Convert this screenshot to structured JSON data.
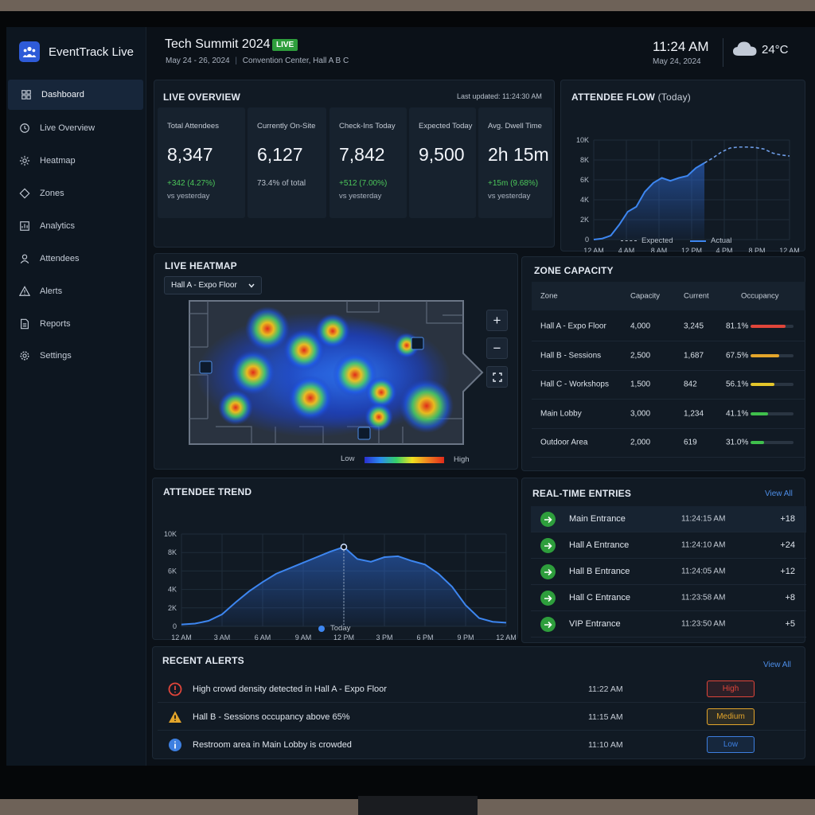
{
  "app": {
    "name": "EventTrack Live"
  },
  "sidebar": {
    "items": [
      {
        "label": "Dashboard",
        "icon": "dashboard-icon",
        "active": true
      },
      {
        "label": "Live Overview",
        "icon": "clock-icon"
      },
      {
        "label": "Heatmap",
        "icon": "heatmap-icon"
      },
      {
        "label": "Zones",
        "icon": "zones-icon"
      },
      {
        "label": "Analytics",
        "icon": "analytics-icon"
      },
      {
        "label": "Attendees",
        "icon": "user-icon"
      },
      {
        "label": "Alerts",
        "icon": "warning-icon"
      },
      {
        "label": "Reports",
        "icon": "report-icon"
      },
      {
        "label": "Settings",
        "icon": "gear-icon"
      }
    ]
  },
  "header": {
    "title": "Tech Summit 2024",
    "badge": "LIVE",
    "dates": "May 24 - 26, 2024",
    "venue": "Convention Center, Hall A B C",
    "time": "11:24 AM",
    "date": "May 24, 2024",
    "temperature": "24°C",
    "weather_icon": "cloud-icon"
  },
  "overview": {
    "title": "LIVE OVERVIEW",
    "updated": "Last updated: 11:24:30 AM",
    "kpis": [
      {
        "label": "Total Attendees",
        "value": "8,347",
        "change": "+342 (4.27%)",
        "ref": "vs yesterday"
      },
      {
        "label": "Currently On-Site",
        "value": "6,127",
        "change": "73.4% of total",
        "ref": ""
      },
      {
        "label": "Check-Ins Today",
        "value": "7,842",
        "change": "+512 (7.00%)",
        "ref": "vs yesterday"
      },
      {
        "label": "Expected Today",
        "value": "9,500",
        "change": "",
        "ref": ""
      },
      {
        "label": "Avg. Dwell Time",
        "value": "2h 15m",
        "change": "+15m (9.68%)",
        "ref": "vs yesterday"
      }
    ]
  },
  "flow": {
    "title": "ATTENDEE FLOW",
    "title_suffix": "(Today)",
    "legend_expected": "Expected",
    "legend_actual": "Actual"
  },
  "heatmap": {
    "title": "LIVE HEATMAP",
    "selected_area": "Hall A - Expo Floor",
    "legend_low": "Low",
    "legend_high": "High"
  },
  "zones": {
    "title": "ZONE CAPACITY",
    "headers": [
      "Zone",
      "Capacity",
      "Current",
      "Occupancy"
    ],
    "rows": [
      {
        "zone": "Hall A - Expo Floor",
        "capacity": "4,000",
        "current": "3,245",
        "occupancy": "81.1%",
        "pct": 81.1,
        "color": "#e0453a"
      },
      {
        "zone": "Hall B - Sessions",
        "capacity": "2,500",
        "current": "1,687",
        "occupancy": "67.5%",
        "pct": 67.5,
        "color": "#e3a52b"
      },
      {
        "zone": "Hall C - Workshops",
        "capacity": "1,500",
        "current": "842",
        "occupancy": "56.1%",
        "pct": 56.1,
        "color": "#e3c52b"
      },
      {
        "zone": "Main Lobby",
        "capacity": "3,000",
        "current": "1,234",
        "occupancy": "41.1%",
        "pct": 41.1,
        "color": "#3fbf4c"
      },
      {
        "zone": "Outdoor Area",
        "capacity": "2,000",
        "current": "619",
        "occupancy": "31.0%",
        "pct": 31.0,
        "color": "#3fbf4c"
      }
    ]
  },
  "trend": {
    "title": "ATTENDEE TREND",
    "legend": "Today"
  },
  "entries": {
    "title": "REAL-TIME ENTRIES",
    "view_all": "View All",
    "rows": [
      {
        "name": "Main Entrance",
        "time": "11:24:15 AM",
        "count": "+18"
      },
      {
        "name": "Hall A Entrance",
        "time": "11:24:10 AM",
        "count": "+24"
      },
      {
        "name": "Hall B Entrance",
        "time": "11:24:05 AM",
        "count": "+12"
      },
      {
        "name": "Hall C Entrance",
        "time": "11:23:58 AM",
        "count": "+8"
      },
      {
        "name": "VIP Entrance",
        "time": "11:23:50 AM",
        "count": "+5"
      }
    ]
  },
  "alerts": {
    "title": "RECENT ALERTS",
    "view_all": "View All",
    "rows": [
      {
        "text": "High crowd density detected in Hall A - Expo Floor",
        "time": "11:22 AM",
        "severity": "High",
        "icon": "error-icon",
        "color": "#e0453a"
      },
      {
        "text": "Hall B - Sessions occupancy above 65%",
        "time": "11:15 AM",
        "severity": "Medium",
        "icon": "warning-icon",
        "color": "#e3a52b"
      },
      {
        "text": "Restroom area in Main Lobby is crowded",
        "time": "11:10 AM",
        "severity": "Low",
        "icon": "info-icon",
        "color": "#3d7fe0"
      }
    ]
  },
  "chart_data": [
    {
      "type": "line",
      "x": [
        "12 AM",
        "4 AM",
        "8 AM",
        "12 PM",
        "4 PM",
        "8 PM",
        "12 AM"
      ],
      "ylabel": "",
      "ylim": [
        0,
        10000
      ],
      "yticks": [
        "0",
        "2K",
        "4K",
        "6K",
        "8K",
        "10K"
      ],
      "series": [
        {
          "name": "Actual",
          "points": [
            [
              0,
              0
            ],
            [
              1,
              100
            ],
            [
              2,
              400
            ],
            [
              3,
              1500
            ],
            [
              4,
              2800
            ],
            [
              5,
              3300
            ],
            [
              6,
              4800
            ],
            [
              7,
              5700
            ],
            [
              8,
              6200
            ],
            [
              9,
              5900
            ],
            [
              10,
              6200
            ],
            [
              11,
              6400
            ],
            [
              12,
              7200
            ],
            [
              13,
              7700
            ]
          ]
        },
        {
          "name": "Expected",
          "points": [
            [
              13,
              7700
            ],
            [
              14,
              8200
            ],
            [
              15,
              8800
            ],
            [
              16,
              9200
            ],
            [
              17,
              9300
            ],
            [
              18,
              9300
            ],
            [
              19,
              9250
            ],
            [
              20,
              9100
            ],
            [
              21,
              8700
            ],
            [
              22,
              8500
            ],
            [
              23,
              8400
            ]
          ]
        }
      ]
    },
    {
      "type": "area",
      "x": [
        "12 AM",
        "3 AM",
        "6 AM",
        "9 AM",
        "12 PM",
        "3 PM",
        "6 PM",
        "9 PM",
        "12 AM"
      ],
      "ylabel": "",
      "ylim": [
        0,
        10000
      ],
      "yticks": [
        "0",
        "2K",
        "4K",
        "6K",
        "8K",
        "10K"
      ],
      "series": [
        {
          "name": "Today",
          "points": [
            [
              0,
              200
            ],
            [
              1,
              300
            ],
            [
              2,
              600
            ],
            [
              3,
              1300
            ],
            [
              4,
              2600
            ],
            [
              5,
              3800
            ],
            [
              6,
              4800
            ],
            [
              7,
              5700
            ],
            [
              8,
              6300
            ],
            [
              9,
              6900
            ],
            [
              10,
              7500
            ],
            [
              11,
              8100
            ],
            [
              12,
              8600
            ],
            [
              13,
              7300
            ],
            [
              14,
              7000
            ],
            [
              15,
              7500
            ],
            [
              16,
              7600
            ],
            [
              17,
              7100
            ],
            [
              18,
              6700
            ],
            [
              19,
              5700
            ],
            [
              20,
              4300
            ],
            [
              21,
              2300
            ],
            [
              22,
              900
            ],
            [
              23,
              500
            ],
            [
              24,
              400
            ]
          ]
        }
      ]
    }
  ]
}
